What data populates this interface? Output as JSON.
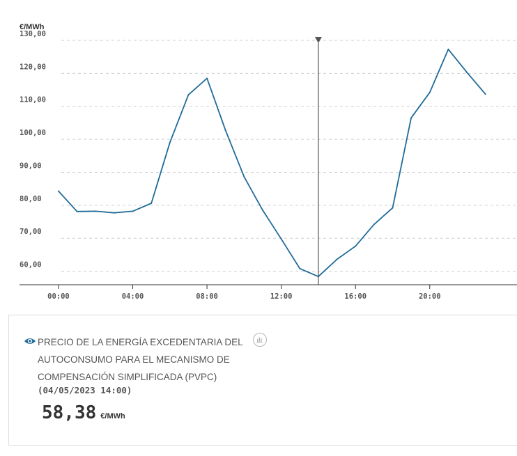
{
  "chart_data": {
    "type": "line",
    "unit_label": "€/MWh",
    "y_ticks": [
      "130,00",
      "120,00",
      "110,00",
      "100,00",
      "90,00",
      "80,00",
      "70,00",
      "60,00"
    ],
    "y_tick_values": [
      130,
      120,
      110,
      100,
      90,
      80,
      70,
      60
    ],
    "x_ticks": [
      "00:00",
      "04:00",
      "08:00",
      "12:00",
      "16:00",
      "20:00"
    ],
    "x_tick_hours": [
      0,
      4,
      8,
      12,
      16,
      20
    ],
    "xlim": [
      -2.1,
      24.7
    ],
    "ylim": [
      55.9,
      133.8
    ],
    "grid": true,
    "series": [
      {
        "x": [
          0,
          1,
          2,
          3,
          4,
          5,
          6,
          7,
          8,
          9,
          10,
          11,
          12,
          13,
          14,
          15,
          16,
          17,
          18,
          19,
          20,
          21,
          22,
          23
        ],
        "values": [
          84.3,
          78.1,
          78.2,
          77.7,
          78.2,
          80.6,
          99.0,
          113.5,
          118.5,
          102.7,
          88.6,
          78.5,
          69.8,
          60.8,
          58.4,
          63.6,
          67.6,
          74.2,
          79.2,
          106.5,
          114.2,
          127.3,
          120.3,
          113.7
        ],
        "color": "#1f6b99"
      }
    ],
    "crosshair_hour": 14
  },
  "legend": {
    "title": "PRECIO DE LA ENERGÍA EXCEDENTARIA DEL AUTOCONSUMO PARA EL MECANISMO DE COMPENSACIÓN SIMPLIFICADA (PVPC)",
    "date": "(04/05/2023 14:00)",
    "value": "58,38",
    "unit": "€/MWh",
    "icon": "eye-icon",
    "chart_icon": "bar-chart-icon"
  }
}
